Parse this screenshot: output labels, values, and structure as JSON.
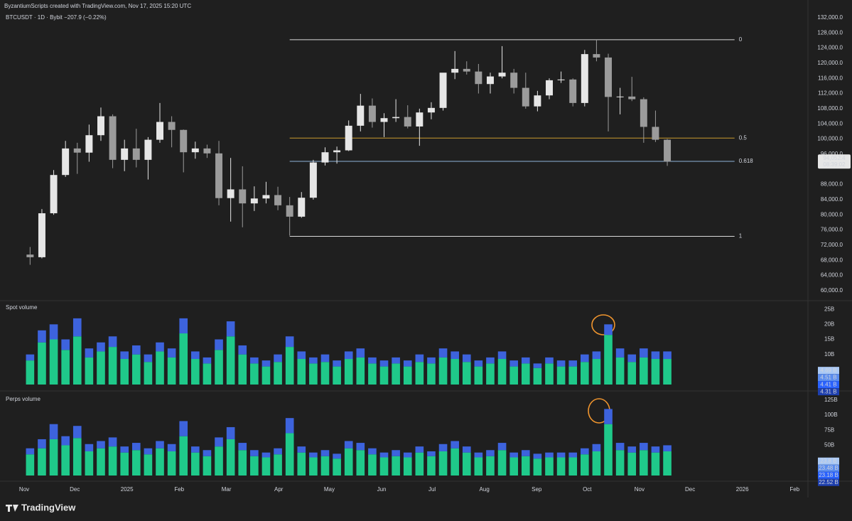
{
  "header": "ByzantiumScripts created with TradingView.com, Nov 17, 2025 15:20 UTC",
  "brand": "TradingView",
  "chart_data": [
    {
      "type": "candlestick",
      "title": "BTCUSDT · 1D · Bybit  −207.9 (−0.22%)",
      "up_color": "#e6e6e6",
      "down_color": "#9b9b9b",
      "categories": [
        null,
        null,
        null,
        null,
        null,
        null,
        null,
        null,
        null,
        null,
        null,
        null,
        null,
        null,
        null,
        null,
        null,
        null,
        null,
        null,
        null,
        null,
        null,
        null,
        null,
        null,
        null,
        null,
        null,
        null,
        null,
        null,
        null,
        null,
        null,
        null,
        null,
        null,
        null,
        null,
        null,
        null,
        null,
        null,
        null,
        null,
        null,
        null,
        null,
        null,
        null,
        null,
        null,
        null,
        null
      ],
      "open": [
        69500,
        68800,
        80400,
        90500,
        97500,
        96400,
        101000,
        106000,
        94500,
        97500,
        94500,
        99800,
        104500,
        102400,
        96500,
        97500,
        96200,
        84400,
        86700,
        83000,
        84300,
        85200,
        82500,
        79500,
        84500,
        93800,
        96500,
        97000,
        103500,
        108800,
        104500,
        105500,
        105800,
        103300,
        107000,
        108200,
        117500,
        118500,
        117800,
        114500,
        116500,
        117500,
        113500,
        108600,
        111500,
        115500,
        115700,
        109500,
        122400,
        121500,
        111100,
        111200,
        110500,
        103200,
        99800
      ],
      "high": [
        71500,
        81500,
        91800,
        99500,
        99000,
        103800,
        108300,
        106500,
        99800,
        102700,
        100500,
        109500,
        106000,
        102500,
        99300,
        98500,
        99500,
        95000,
        92800,
        87500,
        88700,
        87400,
        84700,
        86000,
        94500,
        97800,
        98000,
        104900,
        111900,
        110700,
        106800,
        110500,
        108900,
        108000,
        109700,
        116800,
        123200,
        120500,
        119800,
        117500,
        124500,
        118500,
        117500,
        112700,
        116000,
        117800,
        116000,
        123500,
        126200,
        122500,
        113500,
        116400,
        111000,
        107500,
        100000
      ],
      "low": [
        66800,
        68500,
        80000,
        90000,
        90800,
        94000,
        99500,
        92300,
        91500,
        92500,
        89300,
        99000,
        97800,
        91200,
        94800,
        95000,
        82500,
        78200,
        76700,
        81000,
        83000,
        81200,
        74500,
        79200,
        84000,
        93000,
        93500,
        96800,
        102000,
        103000,
        100500,
        104500,
        102800,
        98200,
        105200,
        107500,
        115800,
        117000,
        112000,
        112000,
        116000,
        112000,
        108000,
        107300,
        110500,
        114800,
        108600,
        108600,
        120500,
        102000,
        106500,
        110000,
        99000,
        99200,
        92900
      ],
      "close": [
        68800,
        80400,
        90500,
        97500,
        96400,
        101000,
        106000,
        94500,
        97500,
        94500,
        99800,
        104500,
        102400,
        96500,
        97500,
        96200,
        84400,
        86700,
        83000,
        84300,
        85200,
        82500,
        79500,
        84500,
        93800,
        96500,
        97000,
        103500,
        108800,
        104500,
        105500,
        105800,
        103300,
        107000,
        108200,
        117500,
        118500,
        117800,
        114500,
        116500,
        117500,
        113500,
        108600,
        111500,
        115500,
        115700,
        109500,
        122400,
        121500,
        111100,
        111200,
        110500,
        103200,
        99800,
        94052.4
      ],
      "xlim": [
        -2.05,
        66.3
      ],
      "xticks": [
        {
          "value": 0,
          "label": "Nov"
        },
        {
          "value": 4.29,
          "label": "Dec"
        },
        {
          "value": 8.71,
          "label": "2025"
        },
        {
          "value": 13.14,
          "label": "Feb"
        },
        {
          "value": 17.14,
          "label": "Mar"
        },
        {
          "value": 21.57,
          "label": "Apr"
        },
        {
          "value": 25.86,
          "label": "May"
        },
        {
          "value": 30.29,
          "label": "Jun"
        },
        {
          "value": 34.57,
          "label": "Jul"
        },
        {
          "value": 39,
          "label": "Aug"
        },
        {
          "value": 43.43,
          "label": "Sep"
        },
        {
          "value": 47.71,
          "label": "Oct"
        },
        {
          "value": 52.14,
          "label": "Nov"
        },
        {
          "value": 56.43,
          "label": "Dec"
        },
        {
          "value": 60.86,
          "label": "2026"
        },
        {
          "value": 65.29,
          "label": "Feb"
        }
      ],
      "ylim": [
        57900,
        133300
      ],
      "yticks": [
        {
          "value": 60000,
          "label": "60,000.0"
        },
        {
          "value": 64000,
          "label": "64,000.0"
        },
        {
          "value": 68000,
          "label": "68,000.0"
        },
        {
          "value": 72000,
          "label": "72,000.0"
        },
        {
          "value": 76000,
          "label": "76,000.0"
        },
        {
          "value": 80000,
          "label": "80,000.0"
        },
        {
          "value": 84000,
          "label": "84,000.0"
        },
        {
          "value": 88000,
          "label": "88,000.0"
        },
        {
          "value": 96000,
          "label": "96,000.0"
        },
        {
          "value": 100000,
          "label": "100,000.0"
        },
        {
          "value": 104000,
          "label": "104,000.0"
        },
        {
          "value": 108000,
          "label": "108,000.0"
        },
        {
          "value": 112000,
          "label": "112,000.0"
        },
        {
          "value": 116000,
          "label": "116,000.0"
        },
        {
          "value": 120000,
          "label": "120,000.0"
        },
        {
          "value": 124000,
          "label": "124,000.0"
        },
        {
          "value": 128000,
          "label": "128,000.0"
        },
        {
          "value": 132000,
          "label": "132,000.0"
        }
      ],
      "last_price": {
        "value": 94052.4,
        "label": "94,052.4",
        "countdown": "08:39:02",
        "color": "#e6e6e6"
      },
      "fib": {
        "start": 22.5,
        "end": 60.2,
        "levels": [
          {
            "level": 0,
            "price": 126200,
            "color": "#d9d9d9"
          },
          {
            "level": 0.5,
            "price": 100250,
            "color": "#c99a2e"
          },
          {
            "level": 0.618,
            "price": 94100,
            "color": "#8fb3d9"
          },
          {
            "level": 1,
            "price": 74300,
            "color": "#d9d9d9"
          }
        ]
      }
    },
    {
      "type": "stacked-bar",
      "title": "Spot volume",
      "categories": [
        null,
        null,
        null,
        null,
        null,
        null,
        null,
        null,
        null,
        null,
        null,
        null,
        null,
        null,
        null,
        null,
        null,
        null,
        null,
        null,
        null,
        null,
        null,
        null,
        null,
        null,
        null,
        null,
        null,
        null,
        null,
        null,
        null,
        null,
        null,
        null,
        null,
        null,
        null,
        null,
        null,
        null,
        null,
        null,
        null,
        null,
        null,
        null,
        null,
        null,
        null,
        null,
        null,
        null,
        null
      ],
      "series": [
        {
          "color": "#1fc98a",
          "values": [
            8,
            14,
            15,
            11.5,
            16,
            9,
            11,
            12.5,
            8.5,
            10,
            7.5,
            11,
            9,
            17,
            8.5,
            7,
            11.5,
            16,
            10,
            7,
            6,
            7.5,
            12.5,
            8.5,
            7,
            7.5,
            6,
            8.5,
            9,
            7,
            6,
            7,
            6,
            7.5,
            7,
            9,
            8.5,
            7.5,
            6,
            7,
            8.5,
            6,
            7,
            5.5,
            7,
            6,
            6,
            7.5,
            8.5,
            16.5,
            9,
            7.5,
            9,
            8.5,
            8.5
          ]
        },
        {
          "color": "#3d63dd",
          "values": [
            2,
            4,
            5,
            3.5,
            6,
            3,
            3,
            3.5,
            2.5,
            3,
            2.5,
            3,
            3,
            5,
            2.5,
            2,
            3.5,
            5,
            3,
            2,
            2,
            2.5,
            3.5,
            2.5,
            2,
            2.5,
            2,
            2.5,
            3,
            2,
            2,
            2,
            2,
            2.5,
            2,
            3,
            2.5,
            2.5,
            2,
            2,
            2.5,
            2,
            2,
            1.5,
            2,
            2,
            2,
            2.5,
            2.5,
            3.5,
            3,
            2.5,
            3,
            2.5,
            2.5
          ]
        }
      ],
      "ylim": [
        0,
        27.4
      ],
      "yticks": [
        {
          "value": 10,
          "label": "10B"
        },
        {
          "value": 15,
          "label": "15B"
        },
        {
          "value": 20,
          "label": "20B"
        },
        {
          "value": 25,
          "label": "25B"
        }
      ],
      "last_labels": [
        {
          "value": 4.69,
          "label": "4.69 B",
          "color": "#a9c8f5"
        },
        {
          "value": 4.51,
          "label": "4.51 B",
          "color": "#5b8def"
        },
        {
          "value": 4.41,
          "label": "4.41 B",
          "color": "#2962ff"
        },
        {
          "value": 4.31,
          "label": "4.31 B",
          "color": "#1e3fae"
        }
      ]
    },
    {
      "type": "stacked-bar",
      "title": "Perps volume",
      "categories": [
        null,
        null,
        null,
        null,
        null,
        null,
        null,
        null,
        null,
        null,
        null,
        null,
        null,
        null,
        null,
        null,
        null,
        null,
        null,
        null,
        null,
        null,
        null,
        null,
        null,
        null,
        null,
        null,
        null,
        null,
        null,
        null,
        null,
        null,
        null,
        null,
        null,
        null,
        null,
        null,
        null,
        null,
        null,
        null,
        null,
        null,
        null,
        null,
        null,
        null,
        null,
        null,
        null,
        null,
        null
      ],
      "series": [
        {
          "color": "#1fc98a",
          "values": [
            35,
            45,
            60,
            50,
            62,
            40,
            45,
            48,
            38,
            42,
            35,
            45,
            40,
            65,
            38,
            32,
            48,
            60,
            42,
            32,
            30,
            35,
            70,
            38,
            30,
            32,
            28,
            45,
            42,
            35,
            30,
            32,
            30,
            38,
            32,
            40,
            45,
            38,
            30,
            32,
            42,
            30,
            32,
            28,
            30,
            30,
            30,
            35,
            40,
            85,
            42,
            38,
            42,
            38,
            40
          ]
        },
        {
          "color": "#3d63dd",
          "values": [
            10,
            15,
            25,
            15,
            20,
            12,
            12,
            15,
            10,
            12,
            10,
            12,
            12,
            25,
            10,
            10,
            15,
            20,
            12,
            10,
            8,
            10,
            25,
            10,
            8,
            10,
            8,
            12,
            12,
            10,
            8,
            10,
            8,
            10,
            8,
            12,
            12,
            10,
            8,
            10,
            12,
            8,
            10,
            8,
            8,
            8,
            8,
            10,
            12,
            25,
            12,
            10,
            12,
            10,
            10
          ]
        }
      ],
      "ylim": [
        0,
        134
      ],
      "yticks": [
        {
          "value": 50,
          "label": "50B"
        },
        {
          "value": 75,
          "label": "75B"
        },
        {
          "value": 100,
          "label": "100B"
        },
        {
          "value": 125,
          "label": "125B"
        }
      ],
      "last_labels": [
        {
          "value": 23.8,
          "label": "23.8 B",
          "color": "#a9c8f5"
        },
        {
          "value": 23.48,
          "label": "23.48 B",
          "color": "#5b8def"
        },
        {
          "value": 23.18,
          "label": "23.18 B",
          "color": "#2962ff"
        },
        {
          "value": 22.52,
          "label": "22.52 B",
          "color": "#1e3fae"
        }
      ]
    }
  ]
}
